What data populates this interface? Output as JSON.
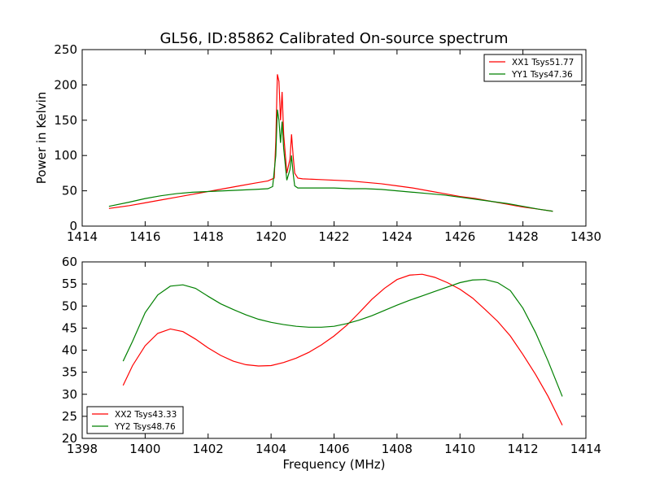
{
  "chart_data": [
    {
      "type": "line",
      "title": "GL56, ID:85862 Calibrated On-source spectrum",
      "xlabel": "",
      "ylabel": "Power in Kelvin",
      "xlim": [
        1414,
        1430
      ],
      "ylim": [
        0,
        250
      ],
      "xticks": [
        1414,
        1416,
        1418,
        1420,
        1422,
        1424,
        1426,
        1428,
        1430
      ],
      "yticks": [
        0,
        50,
        100,
        150,
        200,
        250
      ],
      "legend_position": "top-right",
      "grid": false,
      "series": [
        {
          "name": "XX1 Tsys51.77",
          "color": "#ff0000",
          "x": [
            1414.85,
            1415.5,
            1416,
            1416.5,
            1417,
            1417.5,
            1418,
            1418.5,
            1419,
            1419.5,
            1419.9,
            1420.1,
            1420.15,
            1420.2,
            1420.25,
            1420.3,
            1420.35,
            1420.4,
            1420.5,
            1420.6,
            1420.65,
            1420.7,
            1420.75,
            1420.85,
            1421,
            1421.5,
            1422,
            1422.5,
            1423,
            1423.5,
            1424,
            1424.5,
            1425,
            1425.5,
            1426,
            1426.5,
            1427,
            1427.5,
            1428,
            1428.5,
            1428.95
          ],
          "y": [
            25,
            29,
            33,
            37,
            41,
            45,
            49,
            53,
            57,
            61,
            64,
            68,
            120,
            215,
            205,
            150,
            190,
            130,
            75,
            95,
            130,
            100,
            75,
            68,
            67,
            66,
            65,
            64,
            62,
            60,
            57,
            54,
            50,
            46,
            42,
            39,
            35,
            31,
            27,
            24,
            21
          ]
        },
        {
          "name": "YY1 Tsys47.36",
          "color": "#008000",
          "x": [
            1414.85,
            1415.5,
            1416,
            1416.5,
            1417,
            1417.5,
            1418,
            1418.5,
            1419,
            1419.5,
            1419.9,
            1420.05,
            1420.15,
            1420.2,
            1420.25,
            1420.3,
            1420.35,
            1420.4,
            1420.5,
            1420.6,
            1420.65,
            1420.7,
            1420.75,
            1420.85,
            1421,
            1421.5,
            1422,
            1422.5,
            1423,
            1423.5,
            1424,
            1424.5,
            1425,
            1425.5,
            1426,
            1426.5,
            1427,
            1427.5,
            1428,
            1428.5,
            1428.95
          ],
          "y": [
            28,
            34,
            39,
            43,
            46,
            48,
            49,
            50,
            51,
            52,
            53,
            56,
            100,
            165,
            150,
            118,
            148,
            110,
            65,
            80,
            100,
            75,
            57,
            54,
            54,
            54,
            54,
            53,
            53,
            52,
            50,
            48,
            46,
            44,
            41,
            38,
            35,
            32,
            28,
            24,
            21
          ]
        }
      ]
    },
    {
      "type": "line",
      "title": "",
      "xlabel": "Frequency (MHz)",
      "ylabel": "",
      "xlim": [
        1398,
        1414
      ],
      "ylim": [
        20,
        60
      ],
      "xticks": [
        1398,
        1400,
        1402,
        1404,
        1406,
        1408,
        1410,
        1412,
        1414
      ],
      "yticks": [
        20,
        25,
        30,
        35,
        40,
        45,
        50,
        55,
        60
      ],
      "legend_position": "lower-left",
      "grid": false,
      "series": [
        {
          "name": "XX2 Tsys43.33",
          "color": "#ff0000",
          "x": [
            1399.3,
            1399.6,
            1400,
            1400.4,
            1400.8,
            1401.2,
            1401.6,
            1402,
            1402.4,
            1402.8,
            1403.2,
            1403.6,
            1404,
            1404.4,
            1404.8,
            1405.2,
            1405.6,
            1406,
            1406.4,
            1406.8,
            1407.2,
            1407.6,
            1408,
            1408.4,
            1408.8,
            1409.2,
            1409.6,
            1410,
            1410.4,
            1410.8,
            1411.2,
            1411.6,
            1412,
            1412.4,
            1412.8,
            1413.25
          ],
          "y": [
            32,
            36.5,
            41,
            43.8,
            44.8,
            44.2,
            42.5,
            40.5,
            38.8,
            37.5,
            36.7,
            36.4,
            36.5,
            37.2,
            38.2,
            39.5,
            41.2,
            43.2,
            45.6,
            48.5,
            51.5,
            54,
            56,
            57,
            57.2,
            56.5,
            55.3,
            53.8,
            51.8,
            49.2,
            46.5,
            43.2,
            39,
            34.5,
            29.5,
            23
          ]
        },
        {
          "name": "YY2 Tsys48.76",
          "color": "#008000",
          "x": [
            1399.3,
            1399.6,
            1400,
            1400.4,
            1400.8,
            1401.2,
            1401.6,
            1402,
            1402.4,
            1402.8,
            1403.2,
            1403.6,
            1404,
            1404.4,
            1404.8,
            1405.2,
            1405.6,
            1406,
            1406.4,
            1406.8,
            1407.2,
            1407.6,
            1408,
            1408.4,
            1408.8,
            1409.2,
            1409.6,
            1410,
            1410.4,
            1410.8,
            1411.2,
            1411.6,
            1412,
            1412.4,
            1412.8,
            1413.25
          ],
          "y": [
            37.5,
            42,
            48.5,
            52.5,
            54.5,
            54.8,
            54,
            52.2,
            50.5,
            49.2,
            48,
            47,
            46.3,
            45.8,
            45.4,
            45.2,
            45.2,
            45.4,
            46,
            46.8,
            47.8,
            49,
            50.2,
            51.3,
            52.3,
            53.3,
            54.3,
            55.3,
            55.9,
            56,
            55.3,
            53.5,
            49.5,
            44,
            37.5,
            29.5
          ]
        }
      ]
    }
  ]
}
